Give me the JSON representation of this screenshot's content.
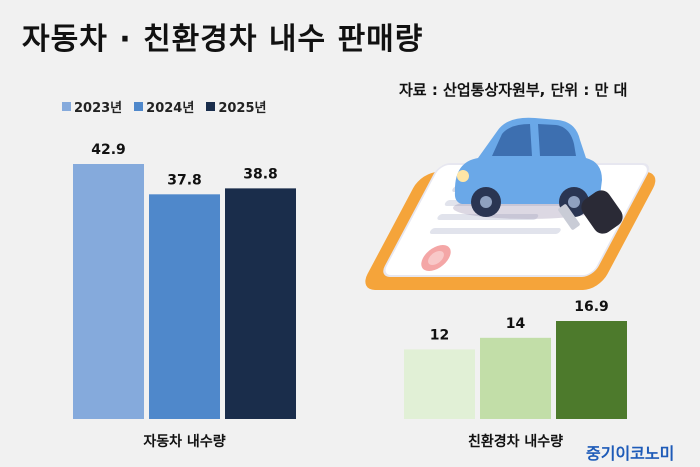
{
  "title": "자동차 · 친환경차 내수 판매량",
  "source": "자료 : 산업통상자원부, 단위 : 만 대",
  "brand": "중기이코노미",
  "legend": [
    {
      "label": "2023년",
      "color": "#85aadc"
    },
    {
      "label": "2024년",
      "color": "#4f88cb"
    },
    {
      "label": "2025년",
      "color": "#1a2d4b"
    }
  ],
  "chart_data": [
    {
      "type": "bar",
      "xlabel": "자동차 내수량",
      "series": [
        {
          "name": "2023년",
          "value": 42.9,
          "label": "42.9",
          "color": "#85aadc"
        },
        {
          "name": "2024년",
          "value": 37.8,
          "label": "37.8",
          "color": "#4f88cb"
        },
        {
          "name": "2025년",
          "value": 38.8,
          "label": "38.8",
          "color": "#1a2d4b"
        }
      ]
    },
    {
      "type": "bar",
      "xlabel": "친환경차 내수량",
      "series": [
        {
          "name": "2023년",
          "value": 12,
          "label": "12",
          "color": "#e1f0d6"
        },
        {
          "name": "2024년",
          "value": 14,
          "label": "14",
          "color": "#c2dea8"
        },
        {
          "name": "2025년",
          "value": 16.9,
          "label": "16.9",
          "color": "#4d7a2c"
        }
      ]
    }
  ]
}
